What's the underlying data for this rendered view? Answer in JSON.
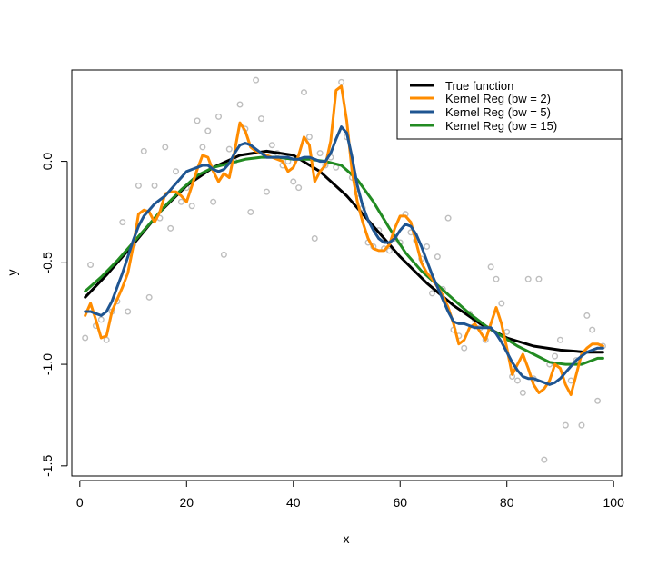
{
  "chart_data": {
    "type": "scatter",
    "title": "",
    "xlabel": "x",
    "ylabel": "y",
    "xlim": [
      -1.5,
      101.5
    ],
    "ylim": [
      -1.55,
      0.45
    ],
    "xticks": [
      0,
      20,
      40,
      60,
      80,
      100
    ],
    "yticks": [
      -1.5,
      -1.0,
      -0.5,
      0.0
    ],
    "xtick_labels": [
      "0",
      "20",
      "40",
      "60",
      "80",
      "100"
    ],
    "ytick_labels": [
      "-1.5",
      "-1.0",
      "-0.5",
      "0.0"
    ],
    "grid": false,
    "legend_position": "top-right",
    "points": {
      "name": "Observations",
      "color": "#bebebe",
      "x": [
        1,
        2,
        3,
        4,
        5,
        6,
        7,
        8,
        9,
        10,
        11,
        12,
        13,
        14,
        15,
        16,
        17,
        18,
        19,
        20,
        21,
        22,
        23,
        24,
        25,
        26,
        27,
        28,
        29,
        30,
        31,
        32,
        33,
        34,
        35,
        36,
        37,
        38,
        39,
        40,
        41,
        42,
        43,
        44,
        45,
        46,
        47,
        48,
        49,
        50,
        51,
        52,
        53,
        54,
        55,
        56,
        57,
        58,
        59,
        60,
        61,
        62,
        63,
        64,
        65,
        66,
        67,
        68,
        69,
        70,
        71,
        72,
        73,
        74,
        75,
        76,
        77,
        78,
        79,
        80,
        81,
        82,
        83,
        84,
        85,
        86,
        87,
        88,
        89,
        90,
        91,
        92,
        93,
        94,
        95,
        96,
        97,
        98
      ],
      "y": [
        -0.87,
        -0.51,
        -0.81,
        -0.78,
        -0.88,
        -0.74,
        -0.69,
        -0.3,
        -0.74,
        -0.41,
        -0.12,
        0.05,
        -0.67,
        -0.12,
        -0.28,
        0.07,
        -0.33,
        -0.05,
        -0.2,
        -0.13,
        -0.22,
        0.2,
        0.07,
        0.15,
        -0.2,
        0.22,
        -0.46,
        0.06,
        0.0,
        0.28,
        0.16,
        -0.25,
        0.4,
        0.21,
        -0.15,
        0.08,
        0.04,
        -0.02,
        0.0,
        -0.1,
        -0.13,
        0.34,
        0.12,
        -0.38,
        0.04,
        -0.02,
        0.02,
        -0.03,
        0.39,
        0.12,
        -0.08,
        -0.16,
        -0.23,
        -0.4,
        -0.42,
        -0.34,
        -0.43,
        -0.44,
        -0.38,
        -0.4,
        -0.26,
        -0.35,
        -0.39,
        -0.48,
        -0.42,
        -0.65,
        -0.47,
        -0.63,
        -0.28,
        -0.83,
        -0.86,
        -0.92,
        -0.75,
        -0.78,
        -0.82,
        -0.88,
        -0.52,
        -0.58,
        -0.7,
        -0.84,
        -1.06,
        -1.08,
        -1.14,
        -0.58,
        -1.07,
        -0.58,
        -1.47,
        -1.0,
        -0.96,
        -0.88,
        -1.3,
        -1.08,
        -0.98,
        -1.3,
        -0.76,
        -0.83,
        -1.18,
        -0.91
      ]
    },
    "series": [
      {
        "name": "True function",
        "color": "#000000",
        "x": [
          1,
          5,
          10,
          15,
          20,
          25,
          30,
          35,
          40,
          45,
          50,
          55,
          60,
          65,
          70,
          75,
          80,
          85,
          90,
          95,
          98
        ],
        "y": [
          -0.67,
          -0.56,
          -0.41,
          -0.25,
          -0.12,
          -0.03,
          0.03,
          0.05,
          0.03,
          -0.05,
          -0.17,
          -0.32,
          -0.47,
          -0.6,
          -0.71,
          -0.8,
          -0.87,
          -0.91,
          -0.93,
          -0.94,
          -0.94
        ]
      },
      {
        "name": "Kernel Reg (bw = 2)",
        "color": "#ff8c00",
        "x": [
          1,
          2,
          3,
          4,
          5,
          6,
          7,
          8,
          9,
          10,
          11,
          12,
          13,
          14,
          15,
          16,
          17,
          18,
          19,
          20,
          21,
          22,
          23,
          24,
          25,
          26,
          27,
          28,
          29,
          30,
          31,
          32,
          33,
          34,
          35,
          36,
          37,
          38,
          39,
          40,
          41,
          42,
          43,
          44,
          45,
          46,
          47,
          48,
          49,
          50,
          51,
          52,
          53,
          54,
          55,
          56,
          57,
          58,
          59,
          60,
          61,
          62,
          63,
          64,
          65,
          66,
          67,
          68,
          69,
          70,
          71,
          72,
          73,
          74,
          75,
          76,
          77,
          78,
          79,
          80,
          81,
          82,
          83,
          84,
          85,
          86,
          87,
          88,
          89,
          90,
          91,
          92,
          93,
          94,
          95,
          96,
          97,
          98
        ],
        "y": [
          -0.76,
          -0.7,
          -0.78,
          -0.87,
          -0.86,
          -0.74,
          -0.68,
          -0.62,
          -0.55,
          -0.42,
          -0.26,
          -0.24,
          -0.25,
          -0.3,
          -0.25,
          -0.16,
          -0.15,
          -0.15,
          -0.17,
          -0.2,
          -0.12,
          -0.04,
          0.03,
          0.02,
          -0.05,
          -0.1,
          -0.06,
          -0.08,
          0.05,
          0.19,
          0.15,
          0.07,
          0.05,
          0.04,
          0.03,
          0.02,
          0.01,
          0.0,
          -0.05,
          -0.03,
          0.03,
          0.12,
          0.08,
          -0.1,
          -0.05,
          -0.02,
          0.1,
          0.35,
          0.37,
          0.2,
          -0.05,
          -0.2,
          -0.3,
          -0.38,
          -0.43,
          -0.44,
          -0.44,
          -0.41,
          -0.33,
          -0.27,
          -0.27,
          -0.3,
          -0.4,
          -0.5,
          -0.55,
          -0.58,
          -0.62,
          -0.66,
          -0.72,
          -0.8,
          -0.9,
          -0.88,
          -0.82,
          -0.8,
          -0.84,
          -0.88,
          -0.8,
          -0.72,
          -0.8,
          -0.92,
          -1.05,
          -1.0,
          -0.95,
          -1.02,
          -1.1,
          -1.14,
          -1.12,
          -1.08,
          -1.0,
          -1.02,
          -1.1,
          -1.15,
          -1.05,
          -0.95,
          -0.92,
          -0.9,
          -0.9,
          -0.91
        ]
      },
      {
        "name": "Kernel Reg (bw = 5)",
        "color": "#1f5591",
        "x": [
          1,
          2,
          3,
          4,
          5,
          6,
          7,
          8,
          9,
          10,
          11,
          12,
          13,
          14,
          15,
          16,
          17,
          18,
          19,
          20,
          21,
          22,
          23,
          24,
          25,
          26,
          27,
          28,
          29,
          30,
          31,
          32,
          33,
          34,
          35,
          36,
          37,
          38,
          39,
          40,
          41,
          42,
          43,
          44,
          45,
          46,
          47,
          48,
          49,
          50,
          51,
          52,
          53,
          54,
          55,
          56,
          57,
          58,
          59,
          60,
          61,
          62,
          63,
          64,
          65,
          66,
          67,
          68,
          69,
          70,
          71,
          72,
          73,
          74,
          75,
          76,
          77,
          78,
          79,
          80,
          81,
          82,
          83,
          84,
          85,
          86,
          87,
          88,
          89,
          90,
          91,
          92,
          93,
          94,
          95,
          96,
          97,
          98
        ],
        "y": [
          -0.74,
          -0.74,
          -0.75,
          -0.76,
          -0.74,
          -0.69,
          -0.62,
          -0.55,
          -0.47,
          -0.39,
          -0.32,
          -0.27,
          -0.24,
          -0.21,
          -0.19,
          -0.17,
          -0.14,
          -0.11,
          -0.08,
          -0.05,
          -0.04,
          -0.03,
          -0.02,
          -0.02,
          -0.04,
          -0.05,
          -0.04,
          -0.01,
          0.04,
          0.08,
          0.09,
          0.08,
          0.06,
          0.04,
          0.02,
          0.02,
          0.02,
          0.02,
          0.02,
          0.01,
          0.01,
          0.02,
          0.02,
          0.01,
          0.0,
          0.0,
          0.04,
          0.11,
          0.17,
          0.14,
          0.02,
          -0.12,
          -0.22,
          -0.29,
          -0.34,
          -0.38,
          -0.4,
          -0.4,
          -0.38,
          -0.34,
          -0.31,
          -0.32,
          -0.36,
          -0.42,
          -0.49,
          -0.56,
          -0.62,
          -0.68,
          -0.74,
          -0.79,
          -0.8,
          -0.8,
          -0.81,
          -0.82,
          -0.82,
          -0.82,
          -0.82,
          -0.85,
          -0.89,
          -0.94,
          -0.99,
          -1.03,
          -1.06,
          -1.07,
          -1.07,
          -1.08,
          -1.09,
          -1.1,
          -1.09,
          -1.07,
          -1.04,
          -1.01,
          -0.98,
          -0.96,
          -0.94,
          -0.93,
          -0.92,
          -0.92
        ]
      },
      {
        "name": "Kernel Reg (bw = 15)",
        "color": "#228b22",
        "x": [
          1,
          4,
          7,
          10,
          13,
          16,
          19,
          22,
          25,
          28,
          31,
          34,
          37,
          40,
          43,
          46,
          49,
          52,
          55,
          58,
          61,
          64,
          67,
          70,
          73,
          76,
          79,
          82,
          85,
          88,
          91,
          94,
          97,
          98
        ],
        "y": [
          -0.64,
          -0.57,
          -0.49,
          -0.4,
          -0.31,
          -0.22,
          -0.14,
          -0.07,
          -0.03,
          -0.01,
          0.01,
          0.02,
          0.02,
          0.01,
          0.01,
          0.0,
          -0.02,
          -0.09,
          -0.2,
          -0.33,
          -0.45,
          -0.54,
          -0.61,
          -0.68,
          -0.75,
          -0.81,
          -0.86,
          -0.91,
          -0.95,
          -0.99,
          -1.0,
          -1.0,
          -0.97,
          -0.97
        ]
      }
    ]
  }
}
